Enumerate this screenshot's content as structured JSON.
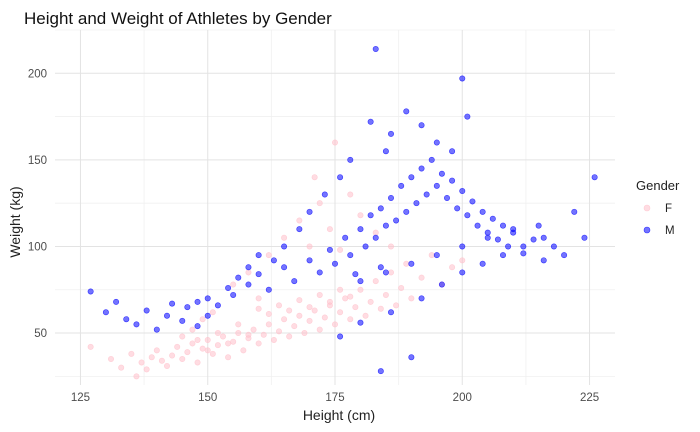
{
  "chart_data": {
    "type": "scatter",
    "title": "Height and Weight of Athletes by Gender",
    "xlabel": "Height (cm)",
    "ylabel": "Weight (kg)",
    "xlim": [
      120,
      230
    ],
    "ylim": [
      20,
      225
    ],
    "xticks": [
      125,
      150,
      175,
      200,
      225
    ],
    "yticks": [
      50,
      100,
      150,
      200
    ],
    "grid": true,
    "legend": {
      "title": "Gender",
      "position": "right"
    },
    "series": [
      {
        "name": "F",
        "color": "#ffc0cb",
        "points": [
          [
            127,
            42
          ],
          [
            131,
            35
          ],
          [
            133,
            30
          ],
          [
            135,
            38
          ],
          [
            136,
            25
          ],
          [
            137,
            33
          ],
          [
            138,
            29
          ],
          [
            139,
            36
          ],
          [
            140,
            40
          ],
          [
            141,
            34
          ],
          [
            142,
            31
          ],
          [
            143,
            37
          ],
          [
            144,
            42
          ],
          [
            145,
            35
          ],
          [
            146,
            39
          ],
          [
            147,
            44
          ],
          [
            148,
            33
          ],
          [
            149,
            41
          ],
          [
            150,
            46
          ],
          [
            151,
            38
          ],
          [
            152,
            43
          ],
          [
            153,
            48
          ],
          [
            154,
            36
          ],
          [
            155,
            45
          ],
          [
            156,
            50
          ],
          [
            157,
            40
          ],
          [
            158,
            47
          ],
          [
            159,
            52
          ],
          [
            160,
            44
          ],
          [
            161,
            49
          ],
          [
            162,
            55
          ],
          [
            163,
            46
          ],
          [
            164,
            51
          ],
          [
            165,
            58
          ],
          [
            166,
            48
          ],
          [
            167,
            54
          ],
          [
            168,
            60
          ],
          [
            169,
            50
          ],
          [
            170,
            57
          ],
          [
            171,
            63
          ],
          [
            172,
            52
          ],
          [
            173,
            59
          ],
          [
            174,
            66
          ],
          [
            175,
            55
          ],
          [
            176,
            62
          ],
          [
            177,
            70
          ],
          [
            178,
            58
          ],
          [
            179,
            65
          ],
          [
            180,
            75
          ],
          [
            181,
            60
          ],
          [
            182,
            68
          ],
          [
            183,
            80
          ],
          [
            184,
            64
          ],
          [
            185,
            72
          ],
          [
            186,
            85
          ],
          [
            187,
            66
          ],
          [
            188,
            76
          ],
          [
            189,
            90
          ],
          [
            190,
            70
          ],
          [
            192,
            82
          ],
          [
            194,
            95
          ],
          [
            196,
            78
          ],
          [
            198,
            88
          ],
          [
            200,
            92
          ],
          [
            171,
            140
          ],
          [
            175,
            160
          ],
          [
            172,
            125
          ],
          [
            168,
            115
          ],
          [
            178,
            130
          ],
          [
            165,
            105
          ],
          [
            180,
            118
          ],
          [
            170,
            100
          ],
          [
            162,
            95
          ],
          [
            158,
            85
          ],
          [
            155,
            78
          ],
          [
            160,
            70
          ],
          [
            174,
            110
          ],
          [
            176,
            98
          ],
          [
            183,
            108
          ],
          [
            186,
            100
          ],
          [
            160,
            64
          ],
          [
            162,
            61
          ],
          [
            164,
            66
          ],
          [
            166,
            63
          ],
          [
            168,
            69
          ],
          [
            170,
            65
          ],
          [
            172,
            72
          ],
          [
            174,
            68
          ],
          [
            176,
            75
          ],
          [
            178,
            71
          ],
          [
            148,
            46
          ],
          [
            150,
            40
          ],
          [
            152,
            50
          ],
          [
            154,
            44
          ],
          [
            156,
            55
          ],
          [
            158,
            49
          ],
          [
            145,
            48
          ],
          [
            147,
            52
          ],
          [
            149,
            58
          ],
          [
            151,
            62
          ]
        ]
      },
      {
        "name": "M",
        "color": "#0000ff",
        "points": [
          [
            127,
            74
          ],
          [
            130,
            62
          ],
          [
            132,
            68
          ],
          [
            134,
            58
          ],
          [
            136,
            55
          ],
          [
            138,
            63
          ],
          [
            140,
            52
          ],
          [
            142,
            60
          ],
          [
            145,
            57
          ],
          [
            148,
            54
          ],
          [
            150,
            60
          ],
          [
            152,
            66
          ],
          [
            155,
            72
          ],
          [
            158,
            78
          ],
          [
            160,
            84
          ],
          [
            162,
            75
          ],
          [
            165,
            88
          ],
          [
            167,
            80
          ],
          [
            170,
            92
          ],
          [
            172,
            85
          ],
          [
            174,
            98
          ],
          [
            175,
            90
          ],
          [
            177,
            105
          ],
          [
            178,
            95
          ],
          [
            180,
            110
          ],
          [
            181,
            100
          ],
          [
            182,
            118
          ],
          [
            183,
            105
          ],
          [
            184,
            122
          ],
          [
            185,
            112
          ],
          [
            186,
            128
          ],
          [
            187,
            115
          ],
          [
            188,
            135
          ],
          [
            189,
            120
          ],
          [
            190,
            140
          ],
          [
            191,
            125
          ],
          [
            192,
            145
          ],
          [
            193,
            130
          ],
          [
            194,
            150
          ],
          [
            195,
            135
          ],
          [
            196,
            142
          ],
          [
            197,
            128
          ],
          [
            198,
            138
          ],
          [
            199,
            122
          ],
          [
            200,
            132
          ],
          [
            201,
            118
          ],
          [
            202,
            126
          ],
          [
            203,
            112
          ],
          [
            204,
            120
          ],
          [
            205,
            108
          ],
          [
            206,
            116
          ],
          [
            207,
            104
          ],
          [
            208,
            112
          ],
          [
            209,
            100
          ],
          [
            210,
            108
          ],
          [
            212,
            96
          ],
          [
            214,
            104
          ],
          [
            216,
            92
          ],
          [
            218,
            100
          ],
          [
            220,
            95
          ],
          [
            222,
            120
          ],
          [
            224,
            105
          ],
          [
            226,
            140
          ],
          [
            183,
            214
          ],
          [
            200,
            197
          ],
          [
            201,
            175
          ],
          [
            189,
            178
          ],
          [
            182,
            172
          ],
          [
            186,
            165
          ],
          [
            195,
            160
          ],
          [
            198,
            155
          ],
          [
            192,
            170
          ],
          [
            185,
            155
          ],
          [
            178,
            150
          ],
          [
            176,
            140
          ],
          [
            173,
            130
          ],
          [
            170,
            120
          ],
          [
            168,
            110
          ],
          [
            165,
            100
          ],
          [
            163,
            92
          ],
          [
            160,
            95
          ],
          [
            158,
            88
          ],
          [
            156,
            82
          ],
          [
            154,
            76
          ],
          [
            150,
            70
          ],
          [
            148,
            68
          ],
          [
            146,
            65
          ],
          [
            143,
            67
          ],
          [
            184,
            28
          ],
          [
            190,
            36
          ],
          [
            176,
            48
          ],
          [
            180,
            56
          ],
          [
            186,
            62
          ],
          [
            192,
            70
          ],
          [
            196,
            78
          ],
          [
            200,
            85
          ],
          [
            204,
            90
          ],
          [
            208,
            95
          ],
          [
            212,
            100
          ],
          [
            216,
            105
          ],
          [
            180,
            80
          ],
          [
            185,
            85
          ],
          [
            190,
            90
          ],
          [
            195,
            95
          ],
          [
            200,
            100
          ],
          [
            205,
            105
          ],
          [
            210,
            110
          ],
          [
            215,
            112
          ],
          [
            179,
            84
          ],
          [
            184,
            88
          ]
        ]
      }
    ]
  }
}
